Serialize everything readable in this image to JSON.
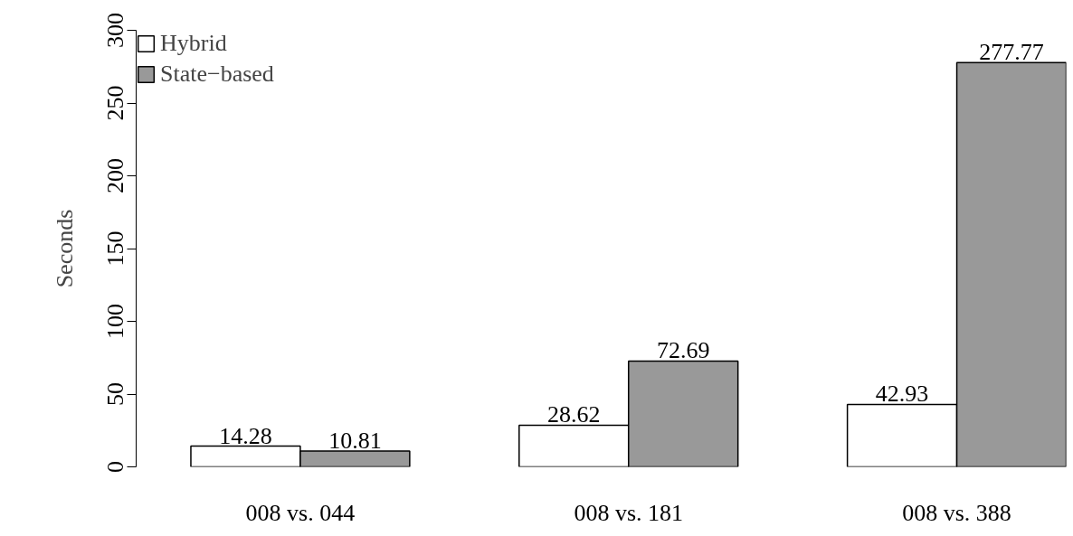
{
  "chart_data": {
    "type": "bar",
    "ylabel": "Seconds",
    "categories": [
      "008 vs. 044",
      "008 vs. 181",
      "008 vs. 388"
    ],
    "series": [
      {
        "name": "Hybrid",
        "color": "#ffffff",
        "values": [
          14.28,
          28.62,
          42.93
        ]
      },
      {
        "name": "State−based",
        "color": "#999999",
        "values": [
          10.81,
          72.69,
          277.77
        ]
      }
    ],
    "ylim": [
      0,
      300
    ],
    "yticks": [
      0,
      50,
      100,
      150,
      200,
      250,
      300
    ],
    "grid": false,
    "legend": "top left",
    "data_labels": true
  }
}
